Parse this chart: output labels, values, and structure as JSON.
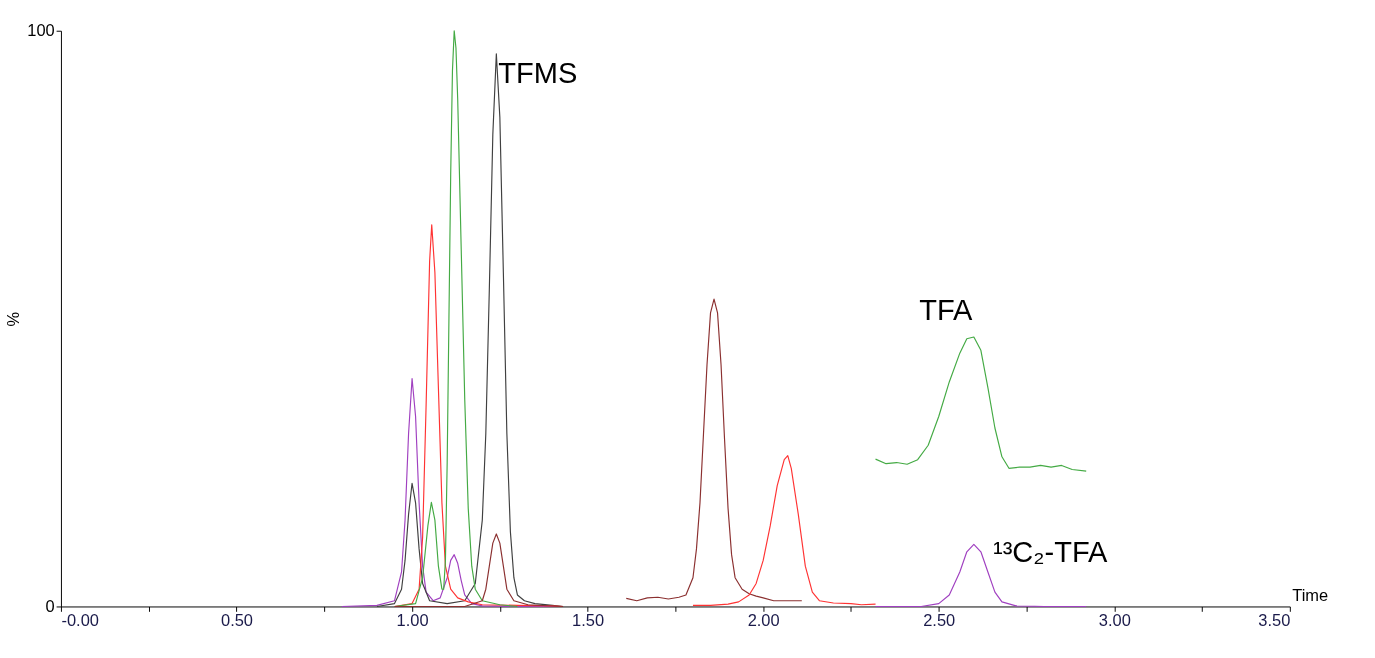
{
  "chart_data": {
    "type": "line",
    "xlabel": "Time",
    "ylabel": "%",
    "xlim": [
      0,
      3.5
    ],
    "ylim": [
      0,
      100
    ],
    "xticks": [
      {
        "value": 0,
        "label": "-0.00"
      },
      {
        "value": 0.25,
        "label": null
      },
      {
        "value": 0.5,
        "label": "0.50"
      },
      {
        "value": 0.75,
        "label": null
      },
      {
        "value": 1,
        "label": "1.00"
      },
      {
        "value": 1.25,
        "label": null
      },
      {
        "value": 1.5,
        "label": "1.50"
      },
      {
        "value": 1.75,
        "label": null
      },
      {
        "value": 2,
        "label": "2.00"
      },
      {
        "value": 2.25,
        "label": null
      },
      {
        "value": 2.5,
        "label": "2.50"
      },
      {
        "value": 2.75,
        "label": null
      },
      {
        "value": 3,
        "label": "3.00"
      },
      {
        "value": 3.25,
        "label": null
      },
      {
        "value": 3.5,
        "label": "3.50"
      }
    ],
    "yticks": [
      0,
      100
    ],
    "grid": false,
    "legend": false,
    "marker": "none",
    "line_style": "solid",
    "series": [
      {
        "color": "#a040c0",
        "x": [
          0.8,
          0.9,
          0.95,
          0.97,
          0.98,
          0.99,
          1.0,
          1.01,
          1.02,
          1.03,
          1.04,
          1.06,
          1.08,
          1.1,
          1.11,
          1.12,
          1.13,
          1.14,
          1.15,
          1.17,
          1.2,
          1.3,
          1.42
        ],
        "values": [
          0,
          0.2,
          1,
          6,
          15,
          30,
          39.6,
          33,
          18,
          7,
          2.5,
          1,
          1.5,
          5,
          8,
          9,
          7.5,
          4.5,
          2,
          0.5,
          0.1,
          0,
          0
        ]
      },
      {
        "color": "#404040",
        "x": [
          0.9,
          0.95,
          0.97,
          0.98,
          0.99,
          1.0,
          1.01,
          1.02,
          1.03,
          1.05,
          1.1,
          1.15,
          1.18,
          1.2,
          1.21,
          1.22,
          1.23,
          1.24,
          1.25,
          1.26,
          1.27,
          1.28,
          1.29,
          1.3,
          1.32,
          1.35,
          1.4,
          1.43
        ],
        "values": [
          0,
          0.5,
          3,
          8,
          16,
          21.4,
          18,
          10,
          4,
          1,
          0.5,
          1,
          4,
          15,
          30,
          55,
          82,
          96,
          85,
          58,
          30,
          13,
          5,
          2,
          1,
          0.5,
          0.2,
          0
        ]
      },
      {
        "color": "#ff3333",
        "x": [
          0.95,
          1.0,
          1.02,
          1.03,
          1.04,
          1.05,
          1.056,
          1.065,
          1.075,
          1.085,
          1.095,
          1.11,
          1.13,
          1.16,
          1.2,
          1.3,
          1.4,
          1.43
        ],
        "values": [
          0,
          0.5,
          3,
          12,
          35,
          60,
          66.3,
          58,
          38,
          18,
          7,
          3,
          1.5,
          0.8,
          0.3,
          0.2,
          0.1,
          0
        ]
      },
      {
        "color": "#44aa44",
        "x": [
          0.95,
          1.01,
          1.03,
          1.045,
          1.055,
          1.065,
          1.075,
          1.085,
          1.09,
          1.095,
          1.1,
          1.105,
          1.11,
          1.115,
          1.12,
          1.125,
          1.13,
          1.14,
          1.15,
          1.16,
          1.17,
          1.18,
          1.2,
          1.25,
          1.3
        ],
        "values": [
          0,
          0.5,
          5,
          14,
          18.1,
          15,
          7,
          3,
          3,
          8,
          25,
          50,
          75,
          93,
          100,
          97,
          88,
          62,
          36,
          17,
          7,
          3,
          1,
          0.3,
          0
        ]
      },
      {
        "color": "#8b3030",
        "x": [
          0.95,
          1.15,
          1.2,
          1.21,
          1.22,
          1.23,
          1.24,
          1.25,
          1.26,
          1.27,
          1.29,
          1.33,
          1.43
        ],
        "values": [
          0,
          0,
          1,
          3,
          7,
          11,
          12.6,
          11,
          7,
          3,
          1,
          0.3,
          0
        ]
      },
      {
        "color": "#8b3030",
        "x": [
          1.61,
          1.64,
          1.67,
          1.7,
          1.73,
          1.76,
          1.78,
          1.8,
          1.81,
          1.82,
          1.83,
          1.84,
          1.85,
          1.86,
          1.87,
          1.88,
          1.89,
          1.9,
          1.91,
          1.92,
          1.94,
          1.96,
          1.98,
          2.0,
          2.03,
          2.05,
          2.11
        ],
        "values": [
          1.4,
          1,
          1.5,
          1.6,
          1.3,
          1.6,
          2,
          5,
          10,
          18,
          30,
          42,
          51,
          53.4,
          51,
          42,
          29,
          17,
          9,
          5,
          3,
          2.2,
          1.8,
          1.5,
          1,
          1,
          1
        ]
      },
      {
        "color": "#ff3333",
        "x": [
          1.8,
          1.85,
          1.9,
          1.93,
          1.96,
          1.98,
          2.0,
          2.02,
          2.04,
          2.06,
          2.07,
          2.08,
          2.1,
          2.12,
          2.14,
          2.16,
          2.2,
          2.25,
          2.28,
          2.32
        ],
        "values": [
          0.2,
          0.2,
          0.4,
          0.8,
          2,
          4,
          8,
          14,
          21,
          25.5,
          26.2,
          24,
          16,
          7,
          2.5,
          1,
          0.6,
          0.5,
          0.3,
          0.4
        ]
      },
      {
        "color": "#44aa44",
        "x": [
          2.32,
          2.35,
          2.38,
          2.41,
          2.44,
          2.47,
          2.5,
          2.53,
          2.56,
          2.58,
          2.6,
          2.62,
          2.64,
          2.66,
          2.68,
          2.7,
          2.73,
          2.76,
          2.79,
          2.82,
          2.85,
          2.88,
          2.92
        ],
        "values": [
          25.6,
          24.8,
          25,
          24.7,
          25.5,
          28,
          33,
          39,
          44,
          46.5,
          46.8,
          44.5,
          38,
          31,
          26,
          24,
          24.2,
          24.2,
          24.5,
          24.2,
          24.5,
          23.8,
          23.5
        ]
      },
      {
        "color": "#a040c0",
        "x": [
          2.32,
          2.45,
          2.5,
          2.53,
          2.56,
          2.58,
          2.6,
          2.62,
          2.64,
          2.66,
          2.68,
          2.72,
          2.8,
          2.92
        ],
        "values": [
          0,
          0,
          0.5,
          2,
          6,
          9.5,
          10.8,
          9.5,
          6,
          2.5,
          0.8,
          0.1,
          0,
          0
        ]
      }
    ],
    "annotations": [
      "TFMS",
      "TFA",
      "¹³C₂-TFA"
    ]
  }
}
